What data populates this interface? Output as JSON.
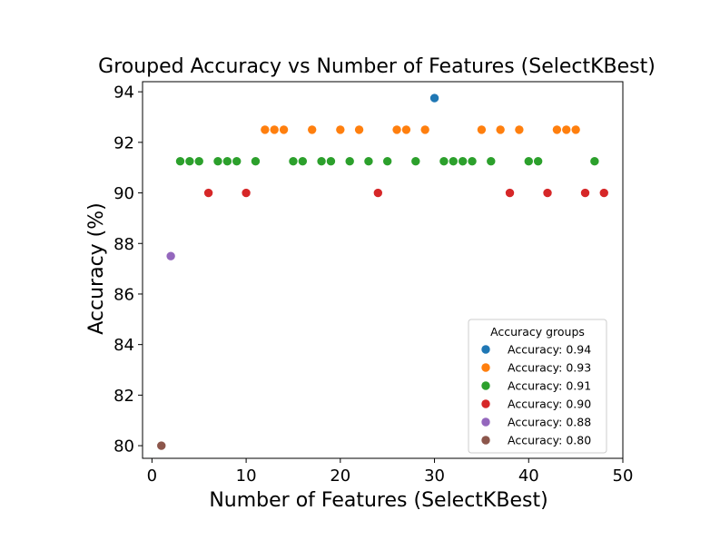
{
  "chart_data": {
    "type": "scatter",
    "title": "Grouped Accuracy vs Number of Features (SelectKBest)",
    "xlabel": "Number of Features (SelectKBest)",
    "ylabel": "Accuracy (%)",
    "xlim": [
      -1,
      50
    ],
    "ylim": [
      79.5,
      94.4
    ],
    "xticks": [
      0,
      10,
      20,
      30,
      40,
      50
    ],
    "yticks": [
      80,
      82,
      84,
      86,
      88,
      90,
      92,
      94
    ],
    "grid": false,
    "legend": {
      "title": "Accuracy groups",
      "placement": "lower right"
    },
    "series": [
      {
        "name": "Accuracy: 0.94",
        "color": "#1f77b4",
        "x": [
          30
        ],
        "y": [
          93.75
        ]
      },
      {
        "name": "Accuracy: 0.93",
        "color": "#ff7f0e",
        "x": [
          12,
          13,
          14,
          17,
          20,
          22,
          26,
          27,
          29,
          35,
          37,
          39,
          43,
          44,
          45
        ],
        "y": [
          92.5,
          92.5,
          92.5,
          92.5,
          92.5,
          92.5,
          92.5,
          92.5,
          92.5,
          92.5,
          92.5,
          92.5,
          92.5,
          92.5,
          92.5
        ]
      },
      {
        "name": "Accuracy: 0.91",
        "color": "#2ca02c",
        "x": [
          3,
          4,
          5,
          7,
          8,
          9,
          11,
          15,
          16,
          18,
          19,
          21,
          23,
          25,
          28,
          31,
          32,
          33,
          34,
          36,
          40,
          41,
          47
        ],
        "y": [
          91.25,
          91.25,
          91.25,
          91.25,
          91.25,
          91.25,
          91.25,
          91.25,
          91.25,
          91.25,
          91.25,
          91.25,
          91.25,
          91.25,
          91.25,
          91.25,
          91.25,
          91.25,
          91.25,
          91.25,
          91.25,
          91.25,
          91.25
        ]
      },
      {
        "name": "Accuracy: 0.90",
        "color": "#d62728",
        "x": [
          6,
          10,
          24,
          38,
          42,
          46,
          48
        ],
        "y": [
          90,
          90,
          90,
          90,
          90,
          90,
          90
        ]
      },
      {
        "name": "Accuracy: 0.88",
        "color": "#9467bd",
        "x": [
          2
        ],
        "y": [
          87.5
        ]
      },
      {
        "name": "Accuracy: 0.80",
        "color": "#8c564b",
        "x": [
          1
        ],
        "y": [
          80
        ]
      }
    ]
  }
}
